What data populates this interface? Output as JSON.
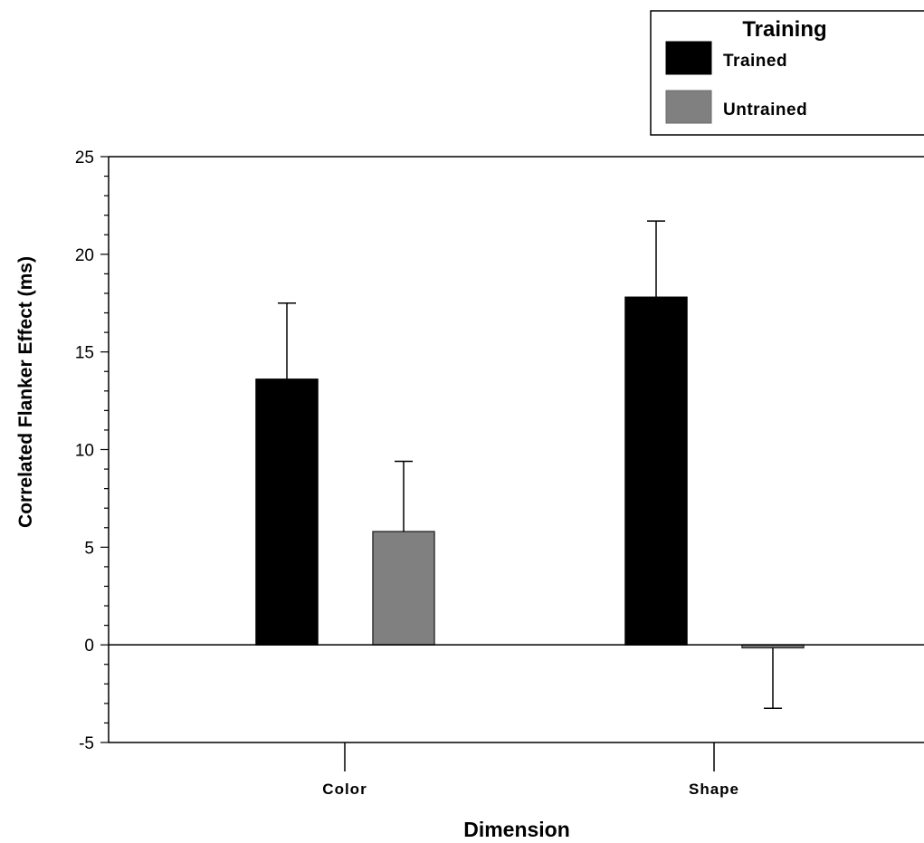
{
  "chart_data": {
    "type": "bar",
    "title": "",
    "xlabel": "Dimension",
    "ylabel": "Correlated Flanker Effect (ms)",
    "categories": [
      "Color",
      "Shape"
    ],
    "ylim": [
      -5,
      25
    ],
    "yticks": [
      -5,
      0,
      5,
      10,
      15,
      20,
      25
    ],
    "ytick_labels": [
      "-5",
      "0",
      "5",
      "10",
      "15",
      "20",
      "25"
    ],
    "legend": {
      "title": "Training",
      "placement": "top-right",
      "entries": [
        "Trained",
        "Untrained"
      ]
    },
    "series": [
      {
        "name": "Trained",
        "color": "#000000",
        "values": [
          13.6,
          17.8
        ],
        "errors": [
          3.9,
          3.9
        ]
      },
      {
        "name": "Untrained",
        "color": "#808080",
        "values": [
          5.8,
          -0.15
        ],
        "errors": [
          3.6,
          3.1
        ]
      }
    ],
    "grid": false,
    "error_bars": "upward-for-positive, downward-for-negative"
  }
}
